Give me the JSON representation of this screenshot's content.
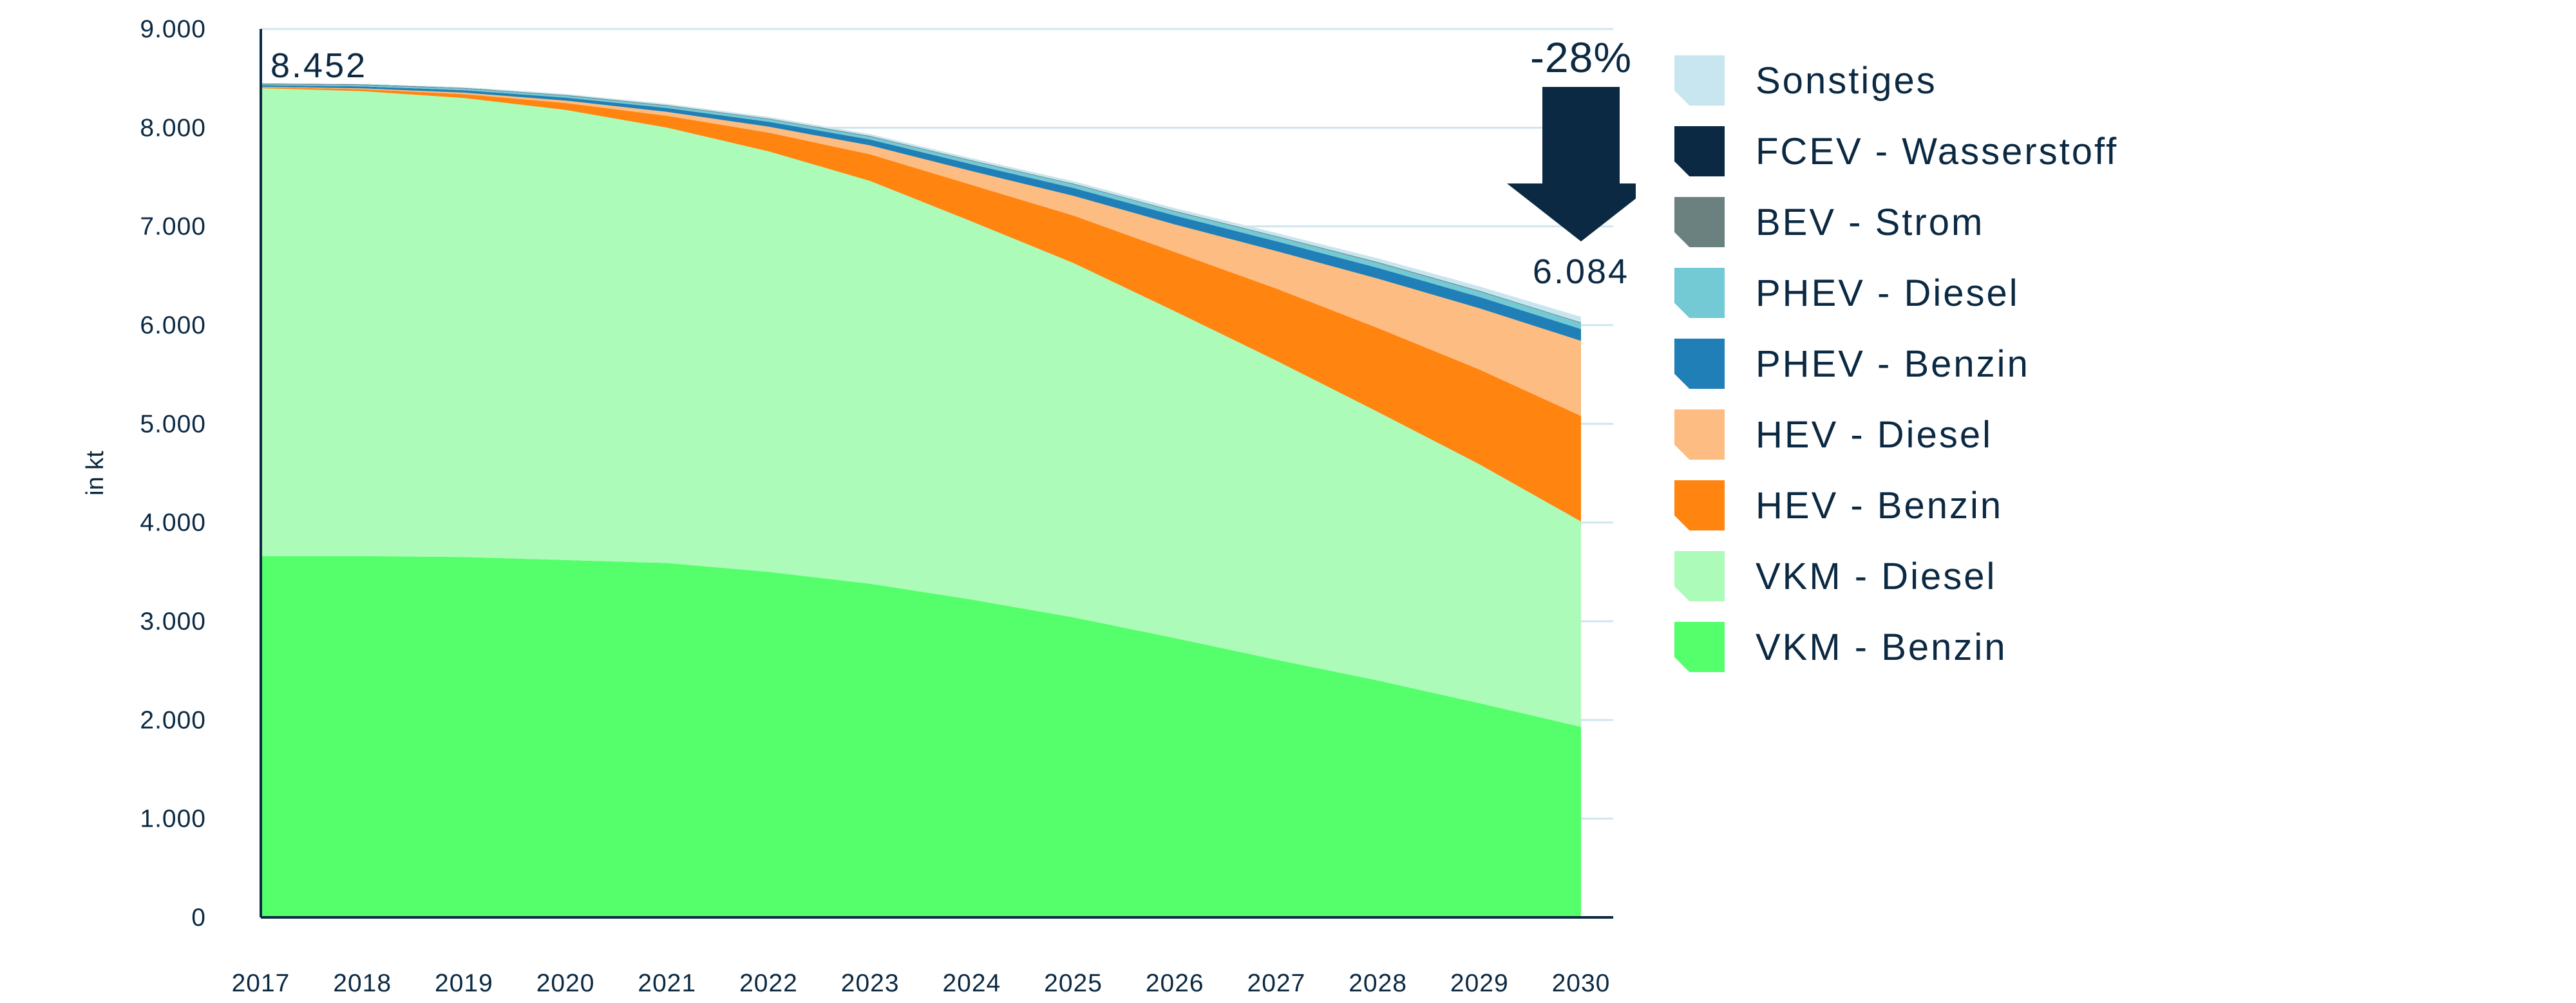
{
  "chart_data": {
    "type": "area",
    "stacked": true,
    "ylabel": "in kt",
    "xlabel": "",
    "ylim": [
      0,
      9000
    ],
    "yticks": [
      "0",
      "1.000",
      "2.000",
      "3.000",
      "4.000",
      "5.000",
      "6.000",
      "7.000",
      "8.000",
      "9.000"
    ],
    "x": [
      "2017",
      "2018",
      "2019",
      "2020",
      "2021",
      "2022",
      "2023",
      "2024",
      "2025",
      "2026",
      "2027",
      "2028",
      "2029",
      "2030"
    ],
    "grid": "horizontal",
    "legend_position": "right",
    "series": [
      {
        "name": "VKM - Benzin",
        "color": "#55ff6b",
        "values": [
          3660,
          3660,
          3650,
          3620,
          3590,
          3500,
          3380,
          3220,
          3040,
          2830,
          2610,
          2400,
          2170,
          1930
        ]
      },
      {
        "name": "VKM - Diesel",
        "color": "#adfbb9",
        "values": [
          4740,
          4710,
          4650,
          4560,
          4410,
          4260,
          4080,
          3830,
          3590,
          3310,
          3030,
          2720,
          2420,
          2080
        ]
      },
      {
        "name": "HEV - Benzin",
        "color": "#ff8410",
        "values": [
          10,
          20,
          40,
          70,
          120,
          190,
          270,
          370,
          480,
          600,
          730,
          850,
          960,
          1070
        ]
      },
      {
        "name": "HEV - Diesel",
        "color": "#fdbc82",
        "values": [
          5,
          8,
          15,
          25,
          40,
          60,
          90,
          140,
          200,
          280,
          380,
          500,
          620,
          760
        ]
      },
      {
        "name": "PHEV - Benzin",
        "color": "#1f7fb6",
        "values": [
          15,
          20,
          25,
          30,
          40,
          50,
          60,
          70,
          80,
          90,
          100,
          110,
          115,
          120
        ]
      },
      {
        "name": "PHEV - Diesel",
        "color": "#73c9d4",
        "values": [
          10,
          12,
          15,
          18,
          20,
          25,
          28,
          32,
          36,
          40,
          45,
          50,
          55,
          60
        ]
      },
      {
        "name": "BEV - Strom",
        "color": "#6b8180",
        "values": [
          5,
          5,
          5,
          5,
          5,
          5,
          5,
          5,
          5,
          5,
          5,
          5,
          5,
          5
        ]
      },
      {
        "name": "FCEV - Wasserstoff",
        "color": "#0b2942",
        "values": [
          2,
          2,
          2,
          2,
          2,
          2,
          2,
          2,
          2,
          2,
          2,
          2,
          2,
          2
        ]
      },
      {
        "name": "Sonstiges",
        "color": "#c8e6ef",
        "values": [
          5,
          8,
          10,
          12,
          15,
          18,
          20,
          22,
          25,
          28,
          32,
          40,
          45,
          57
        ]
      }
    ],
    "annotations": {
      "start_total": "8.452",
      "end_total": "6.084",
      "change": "-28%"
    }
  },
  "colors": {
    "axis": "#0b2942",
    "grid": "#cfe6ef",
    "arrow": "#0b2942"
  },
  "legend_order": [
    "Sonstiges",
    "FCEV - Wasserstoff",
    "BEV - Strom",
    "PHEV - Diesel",
    "PHEV - Benzin",
    "HEV - Diesel",
    "HEV - Benzin",
    "VKM - Diesel",
    "VKM - Benzin"
  ]
}
